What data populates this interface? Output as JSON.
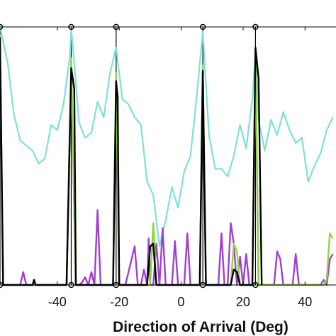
{
  "chart_data": {
    "type": "line",
    "title": "",
    "xlabel": "Direction of Arrival (Deg)",
    "ylabel": "",
    "xlim": [
      -58.5,
      50
    ],
    "ylim": [
      0,
      1
    ],
    "xticks": [
      -40,
      -20,
      0,
      20,
      40
    ],
    "xtick_labels": [
      "-40",
      "-20",
      "0",
      "20",
      "40"
    ],
    "grid": false,
    "legend": "none",
    "markers": {
      "color": "#000000",
      "x": [
        -58.5,
        -35.5,
        -21,
        7,
        24
      ],
      "y": [
        1,
        1,
        1,
        1,
        1
      ]
    },
    "truth_lines": {
      "color": "#000000",
      "x": [
        -58.5,
        -35.5,
        -21,
        7,
        24
      ]
    },
    "series": [
      {
        "color": "#7fe0d8",
        "x": [
          -58.5,
          -56,
          -54,
          -52,
          -50,
          -48,
          -46,
          -44,
          -42,
          -40,
          -38,
          -36,
          -35.5,
          -35,
          -33,
          -31,
          -29,
          -27,
          -25,
          -23,
          -21,
          -19,
          -17,
          -15,
          -13,
          -11,
          -9,
          -7,
          -5,
          -3,
          -1,
          1,
          3,
          5,
          7,
          9,
          11,
          13,
          15,
          17,
          19,
          21,
          23,
          24,
          25,
          27,
          29,
          31,
          33,
          35,
          37,
          39,
          41,
          43,
          45,
          47,
          49
        ],
        "y": [
          1,
          0.86,
          0.66,
          0.56,
          0.54,
          0.52,
          0.47,
          0.49,
          0.62,
          0.6,
          0.7,
          0.88,
          0.99,
          0.93,
          0.63,
          0.57,
          0.59,
          0.71,
          0.65,
          0.82,
          0.92,
          0.72,
          0.7,
          0.65,
          0.62,
          0.4,
          0.35,
          0.15,
          0.25,
          0.38,
          0.3,
          0.44,
          0.5,
          0.73,
          0.98,
          0.58,
          0.45,
          0.45,
          0.42,
          0.5,
          0.62,
          0.53,
          0.72,
          0.9,
          0.64,
          0.52,
          0.64,
          0.58,
          0.67,
          0.6,
          0.55,
          0.57,
          0.4,
          0.46,
          0.51,
          0.6,
          0.65
        ]
      },
      {
        "color": "#a040d0",
        "x": [
          -58.5,
          -57.5,
          -56,
          -54,
          -52,
          -51,
          -50,
          -49,
          -48,
          -38,
          -37,
          -35.5,
          -34,
          -33,
          -32,
          -31,
          -30,
          -29,
          -28,
          -27,
          -26,
          -22,
          -21,
          -20,
          -19,
          -18,
          -15,
          -14,
          -13,
          -12,
          -11,
          -10.5,
          -10,
          -9.5,
          -9,
          -8,
          -7,
          -6,
          -5,
          -4,
          -3,
          -2,
          -1,
          0,
          1,
          2,
          3,
          4,
          5,
          6,
          7,
          8,
          9,
          12,
          13,
          14,
          15,
          16,
          17,
          18,
          19,
          20,
          21,
          22,
          23,
          24,
          25,
          26,
          30,
          31,
          32,
          33,
          34,
          36,
          37,
          38,
          39,
          42,
          43,
          44,
          45,
          46,
          47,
          48,
          49
        ],
        "y": [
          0.9,
          0,
          0,
          0,
          0,
          0.05,
          0,
          0,
          0,
          0,
          0,
          0.84,
          0,
          0,
          0.01,
          0.03,
          0,
          0.05,
          0,
          0.29,
          0,
          0,
          0.8,
          0,
          0,
          0,
          0.15,
          0,
          0,
          0.06,
          0,
          0.18,
          0,
          0,
          0,
          0.16,
          0,
          0.22,
          0,
          0,
          0,
          0.17,
          0,
          0,
          0,
          0.2,
          0,
          0,
          0,
          0,
          0.84,
          0,
          0,
          0,
          0.2,
          0,
          0,
          0.24,
          0.16,
          0,
          0.11,
          0,
          0.12,
          0,
          0,
          0.87,
          0,
          0,
          0,
          0.13,
          0.1,
          0,
          0,
          0,
          0.12,
          0,
          0,
          0,
          0,
          0,
          0,
          0.02,
          0,
          0.1,
          0.12
        ]
      },
      {
        "color": "#8fd440",
        "x": [
          -58.5,
          -57.5,
          -37,
          -35.5,
          -34,
          -22,
          -21,
          -20,
          -12,
          -10,
          -9,
          -8,
          -6,
          -2,
          1,
          5,
          6,
          7,
          8,
          9,
          16,
          17,
          18,
          19,
          20,
          23,
          24,
          25,
          26,
          45,
          46,
          47,
          48,
          49
        ],
        "y": [
          0.97,
          0,
          0,
          0.88,
          0,
          0,
          0.82,
          0,
          0,
          0,
          0.24,
          0,
          0,
          0,
          0,
          0,
          0,
          0.85,
          0,
          0,
          0,
          0.16,
          0.13,
          0,
          0,
          0,
          0.89,
          0,
          0,
          0,
          0,
          0.02,
          0.2,
          0.18
        ]
      },
      {
        "color": "#000000",
        "x": [
          -58.5,
          -57.5,
          -48,
          -47.5,
          -47,
          -37,
          -35.5,
          -34.5,
          -34,
          -22,
          -21,
          -20.5,
          -20,
          -11,
          -10,
          -9,
          -8,
          -2,
          6,
          7,
          8,
          16,
          17,
          18,
          19,
          23,
          24,
          25,
          26
        ],
        "y": [
          0.96,
          0,
          0,
          0.02,
          0,
          0,
          0.84,
          0.76,
          0,
          0,
          0.79,
          0.73,
          0,
          0,
          0.15,
          0.16,
          0,
          0,
          0,
          0.83,
          0,
          0,
          0.06,
          0.05,
          0,
          0,
          0.92,
          0.8,
          0
        ]
      }
    ]
  }
}
